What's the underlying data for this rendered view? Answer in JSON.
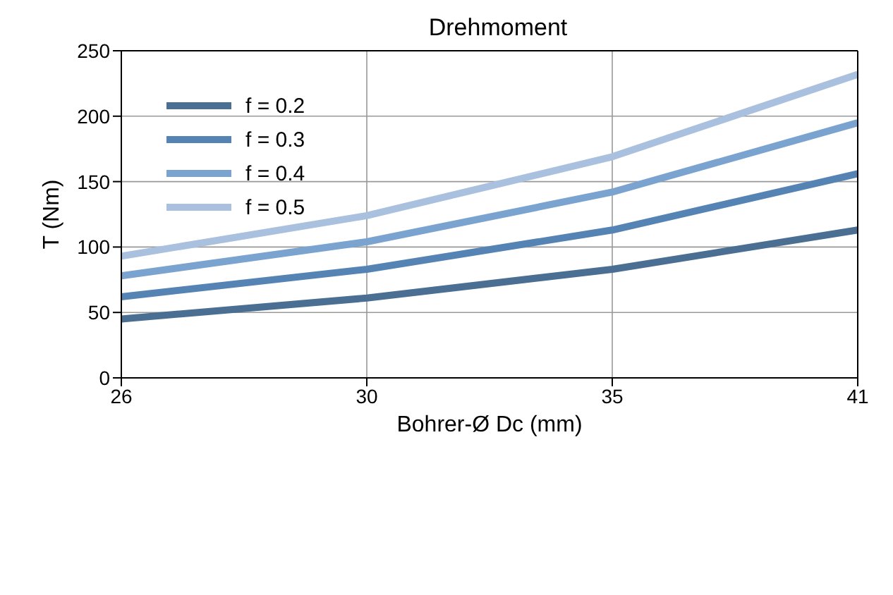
{
  "chart_data": {
    "type": "line",
    "title": "Drehmoment",
    "xlabel": "Bohrer-Ø Dc (mm)",
    "ylabel": "T (Nm)",
    "categories": [
      "26",
      "30",
      "35",
      "41"
    ],
    "series": [
      {
        "name": "f = 0.2",
        "color": "#4a6f93",
        "values": [
          45,
          61,
          83,
          113
        ]
      },
      {
        "name": "f = 0.3",
        "color": "#5584b4",
        "values": [
          62,
          83,
          113,
          156
        ]
      },
      {
        "name": "f = 0.4",
        "color": "#7aa3cf",
        "values": [
          78,
          104,
          142,
          195
        ]
      },
      {
        "name": "f = 0.5",
        "color": "#a9c0de",
        "values": [
          93,
          124,
          169,
          232
        ]
      }
    ],
    "ylim": [
      0,
      250
    ],
    "yticks": [
      0,
      50,
      100,
      150,
      200,
      250
    ],
    "grid": true,
    "legend": "top left",
    "marker": "none",
    "line_style": "solid"
  }
}
